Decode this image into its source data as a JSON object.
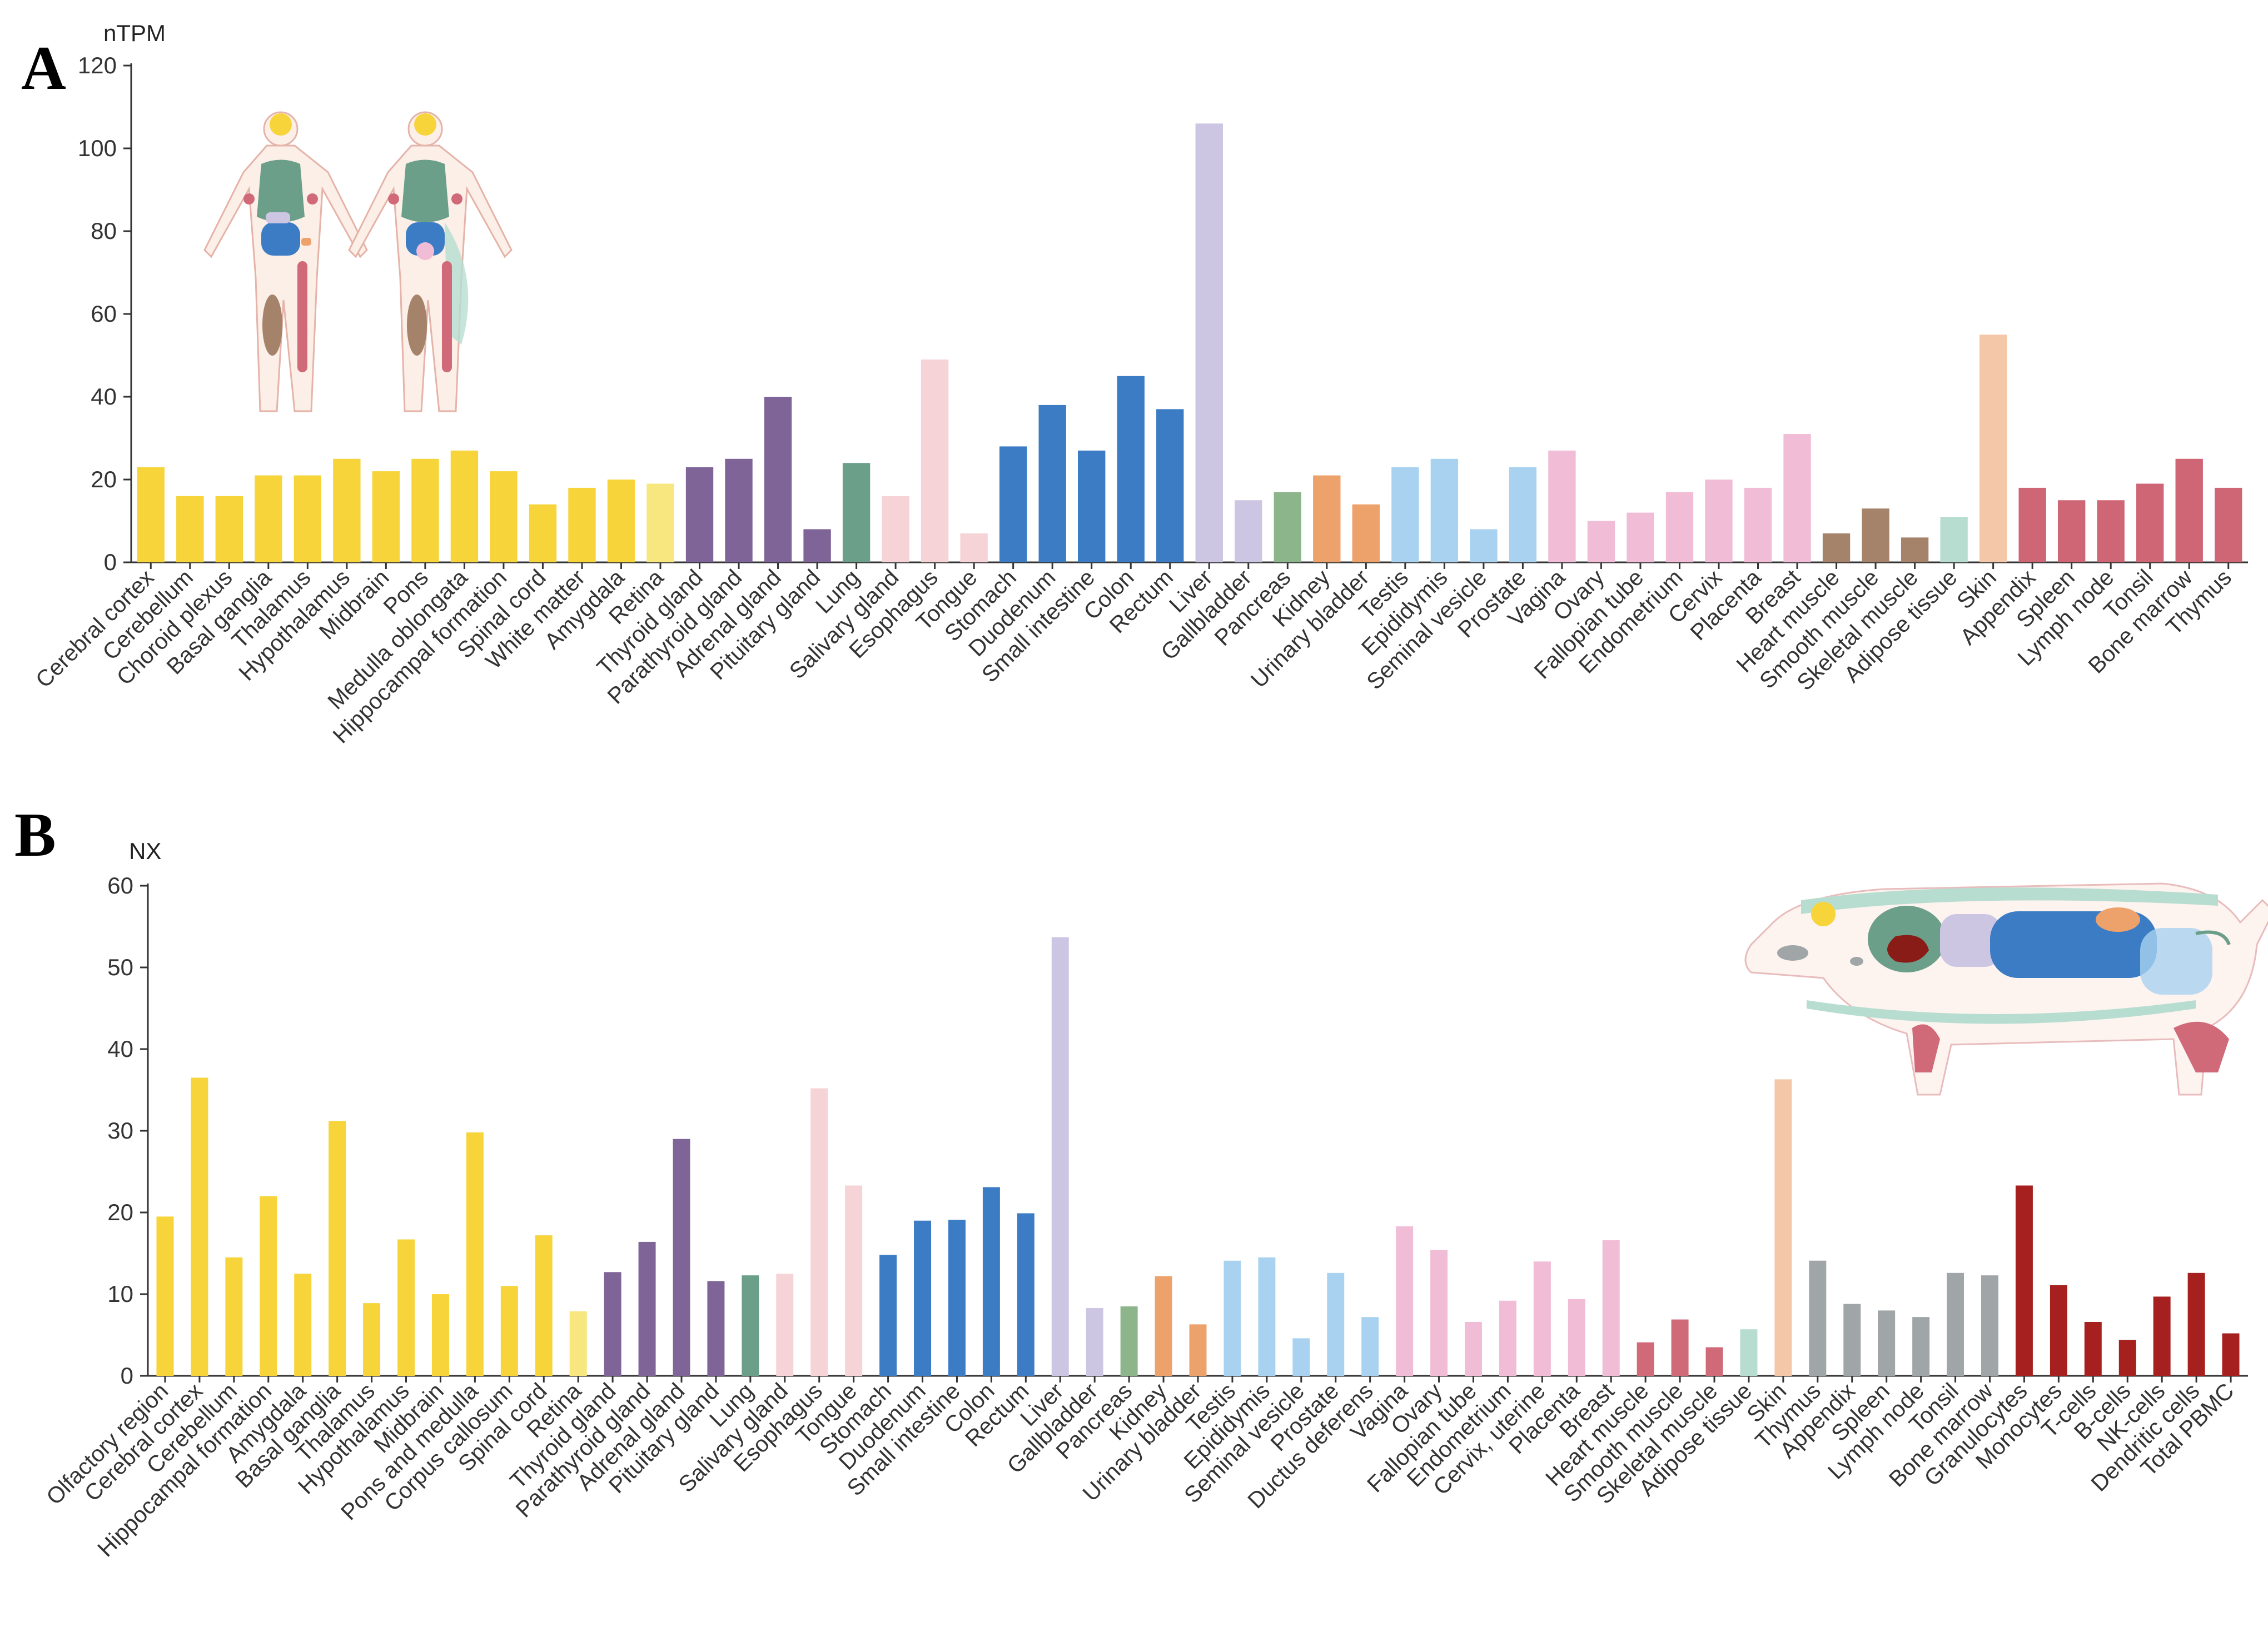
{
  "panels": [
    {
      "letter": "A",
      "unit": "nTPM"
    },
    {
      "letter": "B",
      "unit": "NX"
    }
  ],
  "colors": {
    "brain": "#f6d43a",
    "retina": "#f7e77e",
    "endocrine": "#7e6497",
    "lung": "#6b9f8a",
    "proximal_gi": "#f6d3d6",
    "gi": "#3b7cc4",
    "liver": "#cdc6e3",
    "pancreas": "#8db58b",
    "kidney": "#eda16b",
    "male": "#a9d2f0",
    "female": "#f1bdd6",
    "muscle_a": "#a5826a",
    "muscle_b": "#d06a78",
    "adipose": "#b7ddd1",
    "skin": "#f3c7a8",
    "lymphoid_a": "#cf6675",
    "lymphoid_b": "#a0a5a8",
    "blood": "#a5201e"
  },
  "chart_data": [
    {
      "type": "bar",
      "title": "",
      "ylabel": "nTPM",
      "xlabel": "",
      "ylim": [
        0,
        120
      ],
      "yticks": [
        0,
        20,
        40,
        60,
        80,
        100,
        120
      ],
      "categories": [
        "Cerebral cortex",
        "Cerebellum",
        "Choroid plexus",
        "Basal ganglia",
        "Thalamus",
        "Hypothalamus",
        "Midbrain",
        "Pons",
        "Medulla oblongata",
        "Hippocampal formation",
        "Spinal cord",
        "White matter",
        "Amygdala",
        "Retina",
        "Thyroid gland",
        "Parathyroid gland",
        "Adrenal gland",
        "Pituitary gland",
        "Lung",
        "Salivary gland",
        "Esophagus",
        "Tongue",
        "Stomach",
        "Duodenum",
        "Small intestine",
        "Colon",
        "Rectum",
        "Liver",
        "Gallbladder",
        "Pancreas",
        "Kidney",
        "Urinary bladder",
        "Testis",
        "Epididymis",
        "Seminal vesicle",
        "Prostate",
        "Vagina",
        "Ovary",
        "Fallopian tube",
        "Endometrium",
        "Cervix",
        "Placenta",
        "Breast",
        "Heart muscle",
        "Smooth muscle",
        "Skeletal muscle",
        "Adipose tissue",
        "Skin",
        "Appendix",
        "Spleen",
        "Lymph node",
        "Tonsil",
        "Bone marrow",
        "Thymus"
      ],
      "values": [
        23,
        16,
        16,
        21,
        21,
        25,
        22,
        25,
        27,
        22,
        14,
        18,
        20,
        19,
        23,
        25,
        40,
        8,
        24,
        16,
        49,
        7,
        28,
        38,
        27,
        45,
        37,
        106,
        15,
        17,
        21,
        14,
        23,
        25,
        8,
        23,
        27,
        10,
        12,
        17,
        20,
        18,
        31,
        7,
        13,
        6,
        11,
        55,
        18,
        15,
        15,
        19,
        25,
        18
      ],
      "colors": [
        "#f6d43a",
        "#f6d43a",
        "#f6d43a",
        "#f6d43a",
        "#f6d43a",
        "#f6d43a",
        "#f6d43a",
        "#f6d43a",
        "#f6d43a",
        "#f6d43a",
        "#f6d43a",
        "#f6d43a",
        "#f6d43a",
        "#f7e77e",
        "#7e6497",
        "#7e6497",
        "#7e6497",
        "#7e6497",
        "#6b9f8a",
        "#f6d3d6",
        "#f6d3d6",
        "#f6d3d6",
        "#3b7cc4",
        "#3b7cc4",
        "#3b7cc4",
        "#3b7cc4",
        "#3b7cc4",
        "#cdc6e3",
        "#cdc6e3",
        "#8db58b",
        "#eda16b",
        "#eda16b",
        "#a9d2f0",
        "#a9d2f0",
        "#a9d2f0",
        "#a9d2f0",
        "#f1bdd6",
        "#f1bdd6",
        "#f1bdd6",
        "#f1bdd6",
        "#f1bdd6",
        "#f1bdd6",
        "#f1bdd6",
        "#a5826a",
        "#a5826a",
        "#a5826a",
        "#b7ddd1",
        "#f3c7a8",
        "#cf6675",
        "#cf6675",
        "#cf6675",
        "#cf6675",
        "#cf6675",
        "#cf6675"
      ]
    },
    {
      "type": "bar",
      "title": "",
      "ylabel": "NX",
      "xlabel": "",
      "ylim": [
        0,
        60
      ],
      "yticks": [
        0,
        10,
        20,
        30,
        40,
        50,
        60
      ],
      "categories": [
        "Olfactory region",
        "Cerebral cortex",
        "Cerebellum",
        "Hippocampal formation",
        "Amygdala",
        "Basal ganglia",
        "Thalamus",
        "Hypothalamus",
        "Midbrain",
        "Pons and medulla",
        "Corpus callosum",
        "Spinal cord",
        "Retina",
        "Thyroid gland",
        "Parathyroid gland",
        "Adrenal gland",
        "Pituitary gland",
        "Lung",
        "Salivary gland",
        "Esophagus",
        "Tongue",
        "Stomach",
        "Duodenum",
        "Small intestine",
        "Colon",
        "Rectum",
        "Liver",
        "Gallbladder",
        "Pancreas",
        "Kidney",
        "Urinary bladder",
        "Testis",
        "Epididymis",
        "Seminal vesicle",
        "Prostate",
        "Ductus deferens",
        "Vagina",
        "Ovary",
        "Fallopian tube",
        "Endometrium",
        "Cervix, uterine",
        "Placenta",
        "Breast",
        "Heart muscle",
        "Smooth muscle",
        "Skeletal muscle",
        "Adipose tissue",
        "Skin",
        "Thymus",
        "Appendix",
        "Spleen",
        "Lymph node",
        "Tonsil",
        "Bone marrow",
        "Granulocytes",
        "Monocytes",
        "T-cells",
        "B-cells",
        "NK-cells",
        "Dendritic cells",
        "Total PBMC"
      ],
      "values": [
        19.5,
        36.5,
        14.5,
        22,
        12.5,
        31.2,
        8.9,
        16.7,
        10,
        29.8,
        11,
        17.2,
        7.9,
        12.7,
        16.4,
        29,
        11.6,
        12.3,
        12.5,
        35.2,
        23.3,
        14.8,
        19,
        19.1,
        23.1,
        19.9,
        53.7,
        8.3,
        8.5,
        12.2,
        6.3,
        14.1,
        14.5,
        4.6,
        12.6,
        7.2,
        18.3,
        15.4,
        6.6,
        9.2,
        14,
        9.4,
        16.6,
        4.1,
        6.9,
        3.5,
        5.7,
        36.3,
        14.1,
        8.8,
        8,
        7.2,
        12.6,
        12.3,
        23.3,
        11.1,
        6.6,
        4.4,
        9.7,
        12.6,
        5.2
      ],
      "colors": [
        "#f6d43a",
        "#f6d43a",
        "#f6d43a",
        "#f6d43a",
        "#f6d43a",
        "#f6d43a",
        "#f6d43a",
        "#f6d43a",
        "#f6d43a",
        "#f6d43a",
        "#f6d43a",
        "#f6d43a",
        "#f7e77e",
        "#7e6497",
        "#7e6497",
        "#7e6497",
        "#7e6497",
        "#6b9f8a",
        "#f6d3d6",
        "#f6d3d6",
        "#f6d3d6",
        "#3b7cc4",
        "#3b7cc4",
        "#3b7cc4",
        "#3b7cc4",
        "#3b7cc4",
        "#cdc6e3",
        "#cdc6e3",
        "#8db58b",
        "#eda16b",
        "#eda16b",
        "#a9d2f0",
        "#a9d2f0",
        "#a9d2f0",
        "#a9d2f0",
        "#a9d2f0",
        "#f1bdd6",
        "#f1bdd6",
        "#f1bdd6",
        "#f1bdd6",
        "#f1bdd6",
        "#f1bdd6",
        "#f1bdd6",
        "#d06a78",
        "#d06a78",
        "#d06a78",
        "#b7ddd1",
        "#f3c7a8",
        "#a0a5a8",
        "#a0a5a8",
        "#a0a5a8",
        "#a0a5a8",
        "#a0a5a8",
        "#a0a5a8",
        "#a5201e",
        "#a5201e",
        "#a5201e",
        "#a5201e",
        "#a5201e",
        "#a5201e",
        "#a5201e"
      ]
    }
  ]
}
